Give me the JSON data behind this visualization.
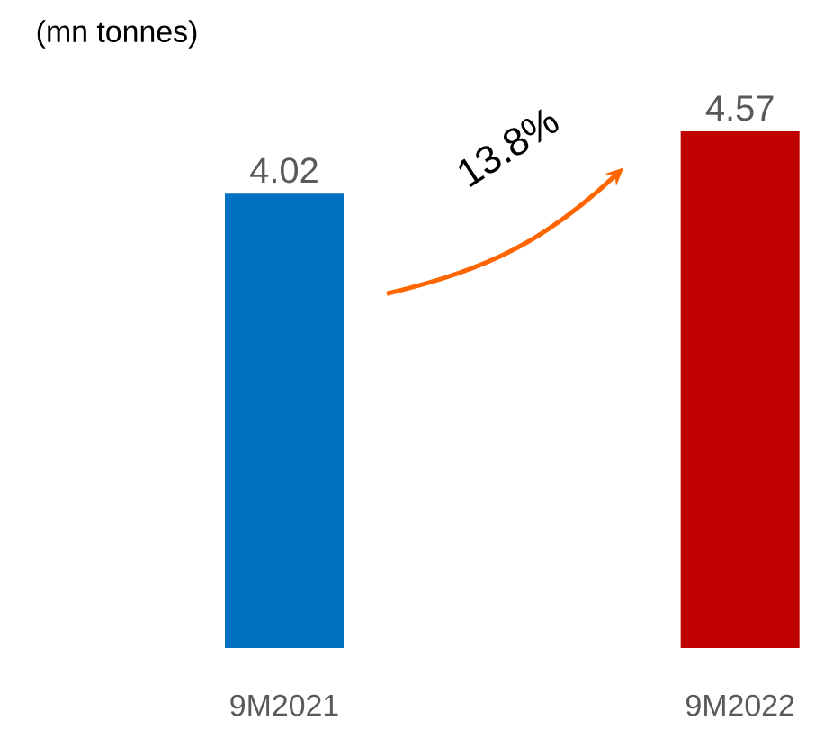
{
  "chart_data": {
    "type": "bar",
    "ylabel": "(mn tonnes)",
    "categories": [
      "9M2021",
      "9M2022"
    ],
    "values": [
      4.02,
      4.57
    ],
    "colors": [
      "#0070c0",
      "#c00000"
    ],
    "data_labels": true,
    "annotations": [
      "13.8%"
    ]
  }
}
